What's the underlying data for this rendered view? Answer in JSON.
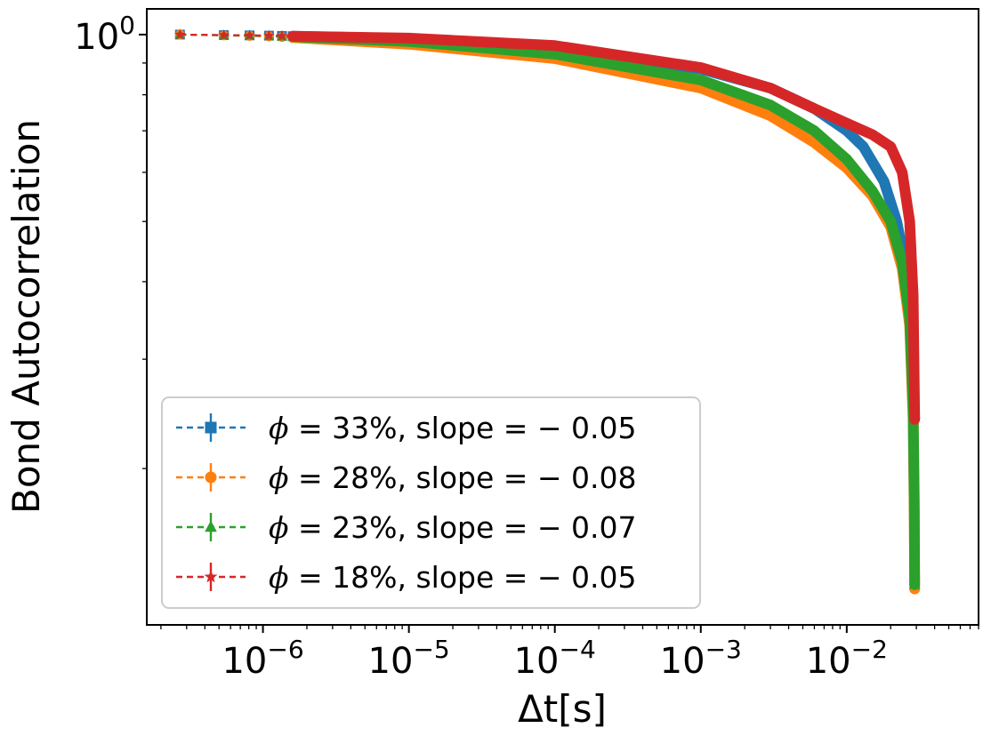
{
  "chart_data": {
    "type": "line",
    "title": "",
    "xlabel": "Δt[s]",
    "ylabel": "Bond Autocorrelation",
    "xscale": "log",
    "yscale": "log",
    "xlim": [
      1.6e-07,
      0.08
    ],
    "ylim": [
      0.112,
      1.1
    ],
    "x_ticks": [
      {
        "value": 1e-06,
        "base": "10",
        "exp": "−6"
      },
      {
        "value": 1e-05,
        "base": "10",
        "exp": "−5"
      },
      {
        "value": 0.0001,
        "base": "10",
        "exp": "−4"
      },
      {
        "value": 0.001,
        "base": "10",
        "exp": "−3"
      },
      {
        "value": 0.01,
        "base": "10",
        "exp": "−2"
      }
    ],
    "y_ticks": [
      {
        "value": 1.0,
        "base": "10",
        "exp": "0"
      }
    ],
    "legend_position": "lower-left",
    "series": [
      {
        "name": "φ = 33%, slope = −0.05",
        "phi_text": "ϕ",
        "rest_text": " = 33%,  slope = − 0.05",
        "color": "#1f77b4",
        "marker": "square",
        "x": [
          2.7e-07,
          5.4e-07,
          8.1e-07,
          1.1e-06,
          1.35e-06,
          1.6e-06,
          1e-05,
          0.0001,
          0.001,
          0.003,
          0.006,
          0.01,
          0.013,
          0.018,
          0.022,
          0.025,
          0.027,
          0.0285
        ],
        "y": [
          1.0,
          0.998,
          0.997,
          0.996,
          0.995,
          0.994,
          0.985,
          0.955,
          0.88,
          0.82,
          0.76,
          0.7,
          0.66,
          0.58,
          0.5,
          0.43,
          0.37,
          0.32
        ]
      },
      {
        "name": "φ = 28%, slope = −0.08",
        "phi_text": "ϕ",
        "rest_text": " = 28%,  slope = − 0.08",
        "color": "#ff7f0e",
        "marker": "circle",
        "x": [
          2.7e-07,
          5.4e-07,
          8.1e-07,
          1.1e-06,
          1.35e-06,
          1.6e-06,
          1e-05,
          0.0001,
          0.001,
          0.003,
          0.006,
          0.01,
          0.015,
          0.02,
          0.024,
          0.027,
          0.0285,
          0.029,
          0.0292
        ],
        "y": [
          1.0,
          0.997,
          0.995,
          0.993,
          0.991,
          0.989,
          0.965,
          0.915,
          0.82,
          0.74,
          0.67,
          0.61,
          0.55,
          0.49,
          0.42,
          0.34,
          0.24,
          0.17,
          0.128
        ]
      },
      {
        "name": "φ = 23%, slope = −0.07",
        "phi_text": "ϕ",
        "rest_text": " = 23%,  slope = − 0.07",
        "color": "#2ca02c",
        "marker": "triangle",
        "x": [
          2.7e-07,
          5.4e-07,
          8.1e-07,
          1.1e-06,
          1.35e-06,
          1.6e-06,
          1e-05,
          0.0001,
          0.001,
          0.003,
          0.006,
          0.01,
          0.015,
          0.02,
          0.024,
          0.027,
          0.0285,
          0.029,
          0.0292
        ],
        "y": [
          1.0,
          0.997,
          0.996,
          0.994,
          0.993,
          0.992,
          0.975,
          0.93,
          0.845,
          0.77,
          0.7,
          0.63,
          0.56,
          0.5,
          0.43,
          0.35,
          0.25,
          0.18,
          0.13
        ]
      },
      {
        "name": "φ = 18%, slope = −0.05",
        "phi_text": "ϕ",
        "rest_text": " = 18%,  slope = − 0.05",
        "color": "#d62728",
        "marker": "star",
        "x": [
          2.7e-07,
          5.4e-07,
          8.1e-07,
          1.1e-06,
          1.35e-06,
          1.6e-06,
          1e-05,
          0.0001,
          0.001,
          0.003,
          0.006,
          0.01,
          0.015,
          0.02,
          0.024,
          0.027,
          0.0285,
          0.0292
        ],
        "y": [
          1.0,
          0.998,
          0.997,
          0.996,
          0.995,
          0.994,
          0.987,
          0.96,
          0.885,
          0.82,
          0.76,
          0.72,
          0.69,
          0.66,
          0.6,
          0.5,
          0.38,
          0.24
        ]
      }
    ]
  }
}
